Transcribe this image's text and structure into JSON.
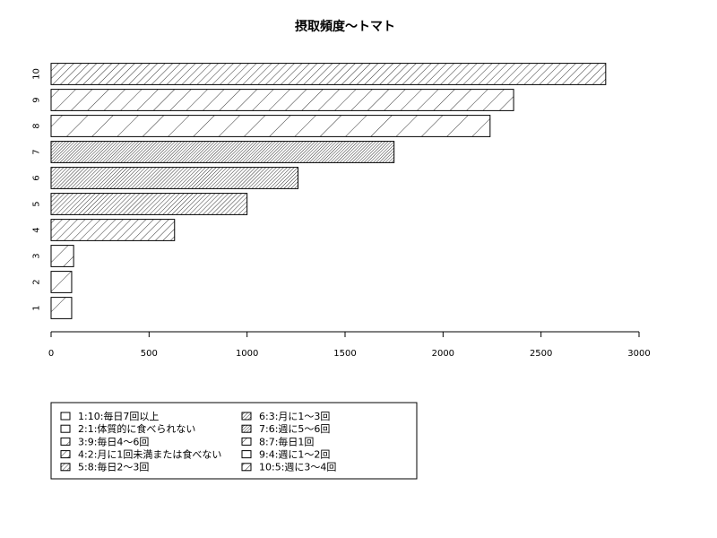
{
  "chart_data": {
    "type": "bar",
    "orientation": "horizontal",
    "title": "摂取頻度〜トマト",
    "xlabel": "",
    "ylabel": "",
    "categories": [
      "1",
      "2",
      "3",
      "4",
      "5",
      "6",
      "7",
      "8",
      "9",
      "10"
    ],
    "values": [
      105,
      105,
      115,
      630,
      1000,
      1260,
      1750,
      2240,
      2360,
      2830
    ],
    "xlim": [
      0,
      3000
    ],
    "xticks": [
      0,
      500,
      1000,
      1500,
      2000,
      2500,
      3000
    ],
    "grid": false,
    "legend_position": "bottom-left",
    "legend": [
      "1:10:毎日7回以上",
      "2:1:体質的に食べられない",
      "3:9:毎日4〜6回",
      "4:2:月に1回未満または食べない",
      "5:8:毎日2〜3回",
      "6:3:月に1〜3回",
      "7:6:週に5〜6回",
      "8:7:毎日1回",
      "9:4:週に1〜2回",
      "10:5:週に3〜4回"
    ]
  }
}
